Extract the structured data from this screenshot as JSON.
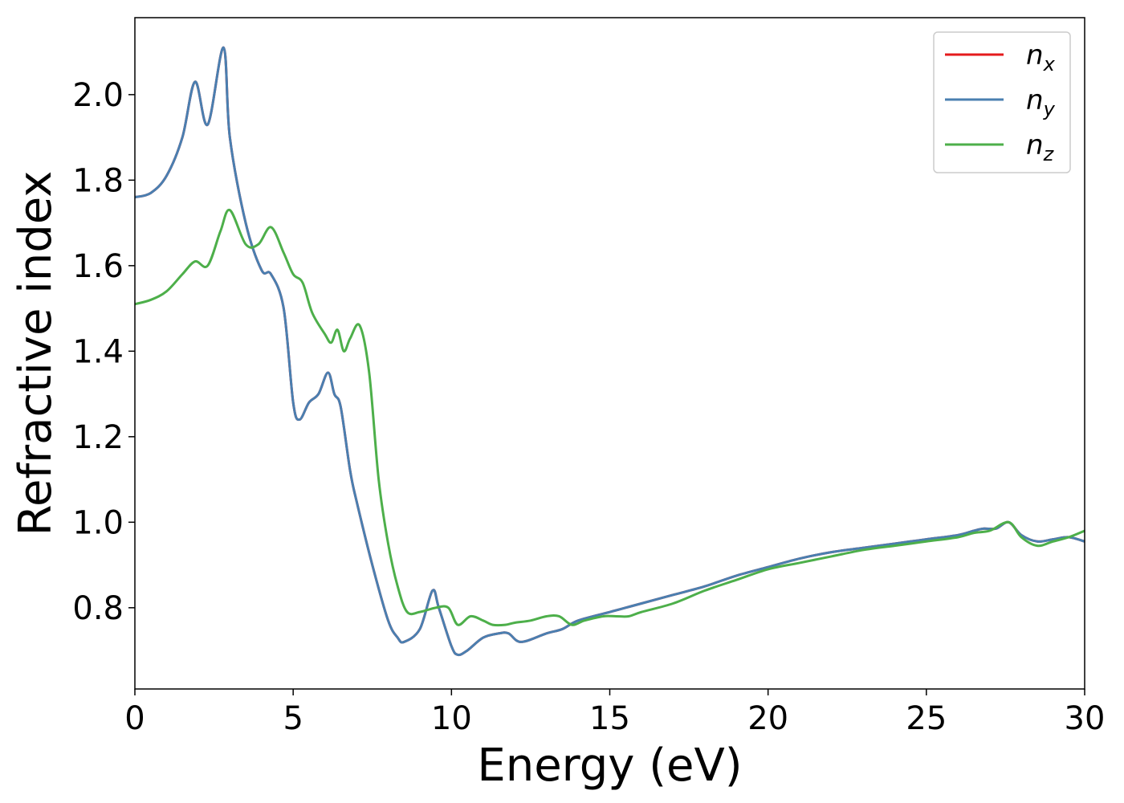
{
  "chart_data": {
    "type": "line",
    "title": "",
    "xlabel": "Energy (eV)",
    "ylabel": "Refractive index",
    "xlim": [
      0,
      30
    ],
    "ylim": [
      0.61,
      2.18
    ],
    "xticks": [
      0,
      5,
      10,
      15,
      20,
      25,
      30
    ],
    "xtick_labels": [
      "0",
      "5",
      "10",
      "15",
      "20",
      "25",
      "30"
    ],
    "yticks": [
      0.8,
      1.0,
      1.2,
      1.4,
      1.6,
      1.8,
      2.0
    ],
    "ytick_labels": [
      "0.8",
      "1.0",
      "1.2",
      "1.4",
      "1.6",
      "1.8",
      "2.0"
    ],
    "grid": false,
    "legend_position": "top-right",
    "series": [
      {
        "name": "n_x",
        "legend_base": "n",
        "legend_sub": "x",
        "color": "#e41a1c",
        "x": [
          0,
          0.5,
          1.0,
          1.5,
          1.9,
          2.3,
          2.8,
          3.0,
          3.5,
          4.0,
          4.3,
          4.7,
          5.0,
          5.2,
          5.5,
          5.8,
          6.1,
          6.3,
          6.5,
          6.8,
          7.0,
          7.5,
          8.0,
          8.3,
          8.5,
          9.0,
          9.4,
          9.6,
          10.0,
          10.2,
          10.5,
          11.0,
          11.5,
          11.8,
          12.2,
          13.0,
          13.5,
          14.0,
          15.0,
          15.5,
          16.0,
          17.0,
          18.0,
          19.0,
          20.0,
          21.0,
          22.0,
          23.0,
          24.0,
          25.0,
          26.0,
          26.5,
          26.8,
          27.2,
          27.6,
          28.0,
          28.5,
          29.0,
          29.5,
          30.0
        ],
        "y": [
          1.76,
          1.77,
          1.81,
          1.9,
          2.03,
          1.93,
          2.11,
          1.9,
          1.7,
          1.59,
          1.58,
          1.5,
          1.28,
          1.24,
          1.28,
          1.3,
          1.35,
          1.3,
          1.27,
          1.12,
          1.05,
          0.9,
          0.77,
          0.73,
          0.72,
          0.75,
          0.84,
          0.8,
          0.71,
          0.69,
          0.7,
          0.73,
          0.74,
          0.74,
          0.72,
          0.74,
          0.75,
          0.77,
          0.79,
          0.8,
          0.81,
          0.83,
          0.85,
          0.875,
          0.895,
          0.915,
          0.93,
          0.94,
          0.95,
          0.96,
          0.97,
          0.98,
          0.985,
          0.985,
          1.0,
          0.97,
          0.955,
          0.96,
          0.965,
          0.955
        ]
      },
      {
        "name": "n_y",
        "legend_base": "n",
        "legend_sub": "y",
        "color": "#4a7fb0",
        "x": [
          0,
          0.5,
          1.0,
          1.5,
          1.9,
          2.3,
          2.8,
          3.0,
          3.5,
          4.0,
          4.3,
          4.7,
          5.0,
          5.2,
          5.5,
          5.8,
          6.1,
          6.3,
          6.5,
          6.8,
          7.0,
          7.5,
          8.0,
          8.3,
          8.5,
          9.0,
          9.4,
          9.6,
          10.0,
          10.2,
          10.5,
          11.0,
          11.5,
          11.8,
          12.2,
          13.0,
          13.5,
          14.0,
          15.0,
          15.5,
          16.0,
          17.0,
          18.0,
          19.0,
          20.0,
          21.0,
          22.0,
          23.0,
          24.0,
          25.0,
          26.0,
          26.5,
          26.8,
          27.2,
          27.6,
          28.0,
          28.5,
          29.0,
          29.5,
          30.0
        ],
        "y": [
          1.76,
          1.77,
          1.81,
          1.9,
          2.03,
          1.93,
          2.11,
          1.9,
          1.7,
          1.59,
          1.58,
          1.5,
          1.28,
          1.24,
          1.28,
          1.3,
          1.35,
          1.3,
          1.27,
          1.12,
          1.05,
          0.9,
          0.77,
          0.73,
          0.72,
          0.75,
          0.84,
          0.8,
          0.71,
          0.69,
          0.7,
          0.73,
          0.74,
          0.74,
          0.72,
          0.74,
          0.75,
          0.77,
          0.79,
          0.8,
          0.81,
          0.83,
          0.85,
          0.875,
          0.895,
          0.915,
          0.93,
          0.94,
          0.95,
          0.96,
          0.97,
          0.98,
          0.985,
          0.985,
          1.0,
          0.97,
          0.955,
          0.96,
          0.965,
          0.955
        ]
      },
      {
        "name": "n_z",
        "legend_base": "n",
        "legend_sub": "z",
        "color": "#4daf4a",
        "x": [
          0,
          0.5,
          1.0,
          1.5,
          1.9,
          2.3,
          2.7,
          3.0,
          3.5,
          3.9,
          4.3,
          4.7,
          5.0,
          5.3,
          5.6,
          6.0,
          6.2,
          6.4,
          6.6,
          6.8,
          7.1,
          7.4,
          7.7,
          8.0,
          8.3,
          8.6,
          9.0,
          9.5,
          9.9,
          10.2,
          10.6,
          11.0,
          11.3,
          11.7,
          12.0,
          12.5,
          13.0,
          13.4,
          13.8,
          14.2,
          14.8,
          15.2,
          15.6,
          16.0,
          17.0,
          18.0,
          19.0,
          20.0,
          21.0,
          22.0,
          23.0,
          24.0,
          25.0,
          26.0,
          26.5,
          27.0,
          27.6,
          28.0,
          28.5,
          29.0,
          29.5,
          30.0
        ],
        "y": [
          1.51,
          1.52,
          1.54,
          1.58,
          1.61,
          1.6,
          1.68,
          1.73,
          1.65,
          1.65,
          1.69,
          1.63,
          1.58,
          1.56,
          1.49,
          1.44,
          1.42,
          1.45,
          1.4,
          1.43,
          1.46,
          1.35,
          1.1,
          0.95,
          0.85,
          0.79,
          0.79,
          0.8,
          0.8,
          0.76,
          0.78,
          0.77,
          0.76,
          0.76,
          0.765,
          0.77,
          0.78,
          0.78,
          0.76,
          0.77,
          0.78,
          0.78,
          0.78,
          0.79,
          0.81,
          0.84,
          0.865,
          0.89,
          0.905,
          0.92,
          0.935,
          0.945,
          0.955,
          0.965,
          0.975,
          0.98,
          1.0,
          0.965,
          0.945,
          0.955,
          0.965,
          0.98
        ]
      }
    ]
  }
}
